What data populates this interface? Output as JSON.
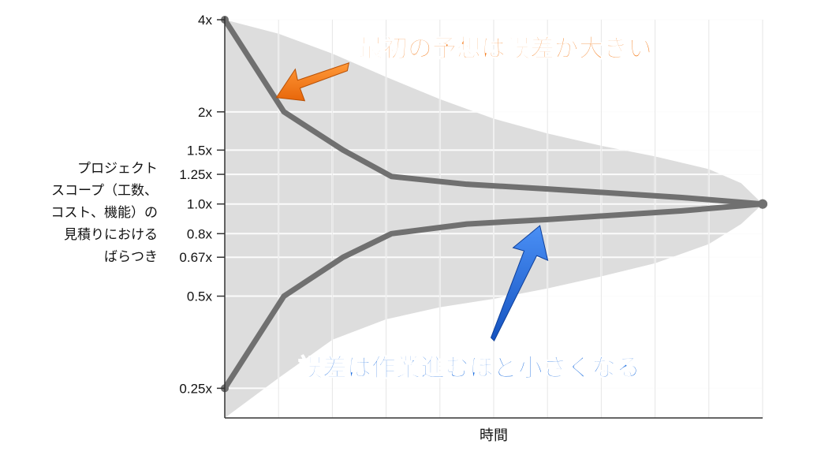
{
  "chart_data": {
    "type": "line",
    "title": "",
    "xlabel": "時間",
    "ylabel_lines": [
      "プロジェクト",
      "スコープ（工数、",
      "コスト、機能）の",
      "見積りにおける",
      "ばらつき"
    ],
    "yscale": "log",
    "ylim": [
      0.2,
      4
    ],
    "ytick_values": [
      4,
      2,
      1.5,
      1.25,
      1.0,
      0.8,
      0.67,
      0.5,
      0.25
    ],
    "ytick_labels": [
      "4x",
      "2x",
      "1.5x",
      "1.25x",
      "1.0x",
      "0.8x",
      "0.67x",
      "0.5x",
      "0.25x"
    ],
    "x_gridlines": 10,
    "grid": true,
    "series": [
      {
        "values": [
          [
            0,
            4
          ],
          [
            1.1,
            2.0
          ],
          [
            2.2,
            1.5
          ],
          [
            3.1,
            1.23
          ],
          [
            4.5,
            1.16
          ],
          [
            6,
            1.12
          ],
          [
            8.5,
            1.05
          ],
          [
            10,
            1.0
          ]
        ],
        "color": "#707070"
      },
      {
        "values": [
          [
            0,
            0.25
          ],
          [
            1.1,
            0.5
          ],
          [
            2.2,
            0.67
          ],
          [
            3.1,
            0.8
          ],
          [
            4.5,
            0.86
          ],
          [
            6,
            0.89
          ],
          [
            8.5,
            0.95
          ],
          [
            10,
            1.0
          ]
        ],
        "color": "#707070"
      }
    ],
    "envelope": {
      "color": "#dddddd",
      "upper": [
        [
          0,
          4
        ],
        [
          1,
          3.6
        ],
        [
          2,
          3.1
        ],
        [
          3,
          2.6
        ],
        [
          4,
          2.2
        ],
        [
          5,
          1.9
        ],
        [
          6,
          1.7
        ],
        [
          7,
          1.55
        ],
        [
          8,
          1.43
        ],
        [
          9,
          1.3
        ],
        [
          9.6,
          1.17
        ],
        [
          10,
          1.0
        ]
      ],
      "lower": [
        [
          0,
          0.2
        ],
        [
          1,
          0.27
        ],
        [
          2,
          0.36
        ],
        [
          3,
          0.42
        ],
        [
          4,
          0.46
        ],
        [
          5,
          0.49
        ],
        [
          6,
          0.53
        ],
        [
          7,
          0.58
        ],
        [
          8,
          0.64
        ],
        [
          9,
          0.74
        ],
        [
          9.6,
          0.86
        ],
        [
          10,
          1.0
        ]
      ]
    },
    "annotations": [
      {
        "text": "最初の予想は誤差が大きい",
        "color": "#f47c1c",
        "arrow_color": "#f47c1c",
        "target": [
          0.9,
          2.2
        ]
      },
      {
        "text": "誤差は作業進むほど小さくなる",
        "color": "#1e6fe0",
        "arrow_color": "#1e6fe0",
        "target": [
          5.8,
          0.87
        ]
      }
    ]
  }
}
